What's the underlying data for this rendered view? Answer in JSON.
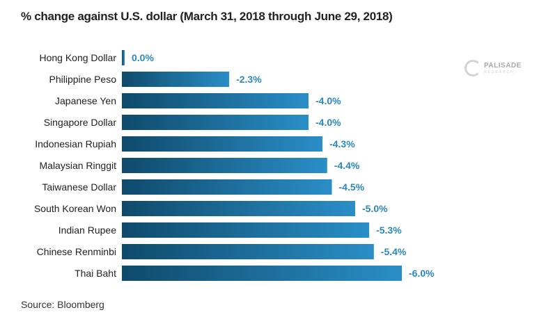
{
  "chart_data": {
    "type": "bar",
    "orientation": "horizontal",
    "title": "% change against U.S. dollar (March 31, 2018 through June 29, 2018)",
    "source": "Source: Bloomberg",
    "categories": [
      "Hong Kong Dollar",
      "Philippine Peso",
      "Japanese Yen",
      "Singapore Dollar",
      "Indonesian Rupiah",
      "Malaysian Ringgit",
      "Taiwanese Dollar",
      "South Korean Won",
      "Indian Rupee",
      "Chinese Renminbi",
      "Thai Baht"
    ],
    "values": [
      0.0,
      -2.3,
      -4.0,
      -4.0,
      -4.3,
      -4.4,
      -4.5,
      -5.0,
      -5.3,
      -5.4,
      -6.0
    ],
    "value_labels": [
      "0.0%",
      "-2.3%",
      "-4.0%",
      "-4.0%",
      "-4.3%",
      "-4.4%",
      "-4.5%",
      "-5.0%",
      "-5.3%",
      "-5.4%",
      "-6.0%"
    ],
    "xlabel": "",
    "ylabel": "",
    "grid": false,
    "colors": {
      "bar_start": "#0f4a6b",
      "bar_end": "#2a8ec7",
      "value_label": "#2a86bb"
    }
  },
  "logo": {
    "name": "PALISADE",
    "sub": "RESEARCH"
  }
}
